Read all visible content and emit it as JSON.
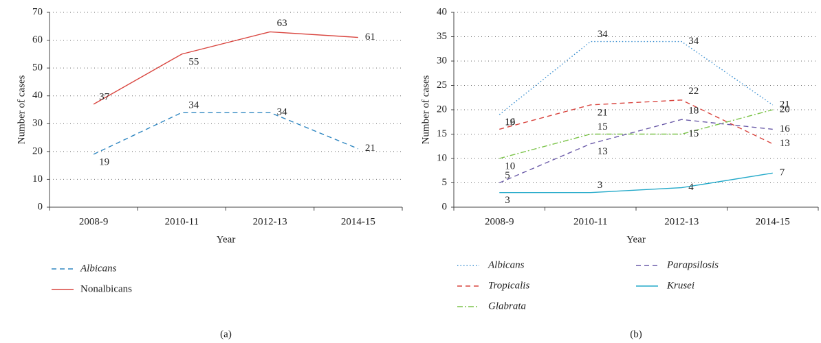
{
  "chart_data": [
    {
      "type": "line",
      "caption": "(a)",
      "x_label": "Year",
      "y_label": "Number of cases",
      "categories": [
        "2008-9",
        "2010-11",
        "2012-13",
        "2014-15"
      ],
      "ylim": [
        0,
        70
      ],
      "yticks": [
        0,
        10,
        20,
        30,
        40,
        50,
        60,
        70
      ],
      "grid": true,
      "series": [
        {
          "name": "Albicans",
          "color": "#2e86c1",
          "dash": "dashed",
          "values": [
            19,
            34,
            34,
            21
          ]
        },
        {
          "name": "Nonalbicans",
          "color": "#d9453f",
          "dash": "solid",
          "values": [
            37,
            55,
            63,
            61
          ]
        }
      ]
    },
    {
      "type": "line",
      "caption": "(b)",
      "x_label": "Year",
      "y_label": "Number of cases",
      "categories": [
        "2008-9",
        "2010-11",
        "2012-13",
        "2014-15"
      ],
      "ylim": [
        0,
        40
      ],
      "yticks": [
        0,
        5,
        10,
        15,
        20,
        25,
        30,
        35,
        40
      ],
      "grid": true,
      "series": [
        {
          "name": "Albicans",
          "color": "#3a8fd0",
          "dash": "dotted",
          "values": [
            19,
            34,
            34,
            21
          ]
        },
        {
          "name": "Tropicalis",
          "color": "#d9453f",
          "dash": "dashed",
          "values": [
            16,
            21,
            22,
            13
          ]
        },
        {
          "name": "Glabrata",
          "color": "#7cc44a",
          "dash": "dashdot",
          "values": [
            10,
            15,
            15,
            20
          ]
        },
        {
          "name": "Parapsilosis",
          "color": "#6a5aa8",
          "dash": "dashed",
          "values": [
            5,
            13,
            18,
            16
          ]
        },
        {
          "name": "Krusei",
          "color": "#22a9c9",
          "dash": "solid",
          "values": [
            3,
            3,
            4,
            7
          ]
        }
      ]
    }
  ]
}
